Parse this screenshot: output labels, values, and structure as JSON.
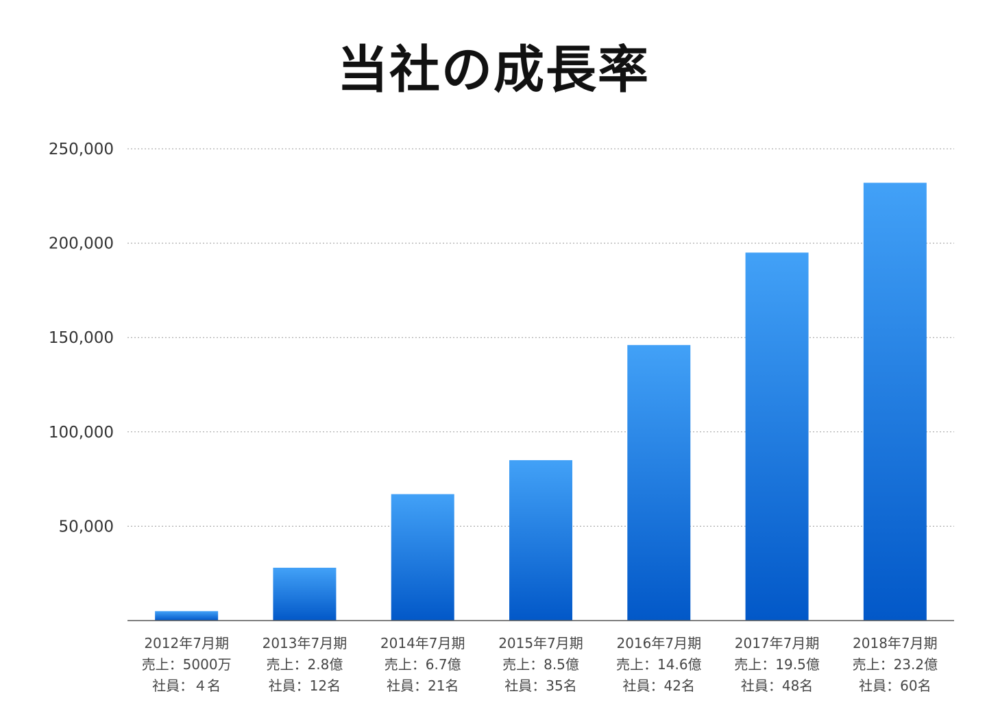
{
  "chart_data": {
    "type": "bar",
    "title": "当社の成長率",
    "xlabel": "",
    "ylabel": "",
    "ylim": [
      0,
      250000
    ],
    "yticks": [
      50000,
      100000,
      150000,
      200000,
      250000
    ],
    "ytick_labels": [
      "50,000",
      "100,000",
      "150,000",
      "200,000",
      "250,000"
    ],
    "grid": true,
    "bar_color_top": "#42a1f7",
    "bar_color_bottom": "#0258c8",
    "categories": [
      [
        "2012年7月期",
        "売上：5000万",
        "社員：４名"
      ],
      [
        "2013年7月期",
        "売上：2.8億",
        "社員：12名"
      ],
      [
        "2014年7月期",
        "売上：6.7億",
        "社員：21名"
      ],
      [
        "2015年7月期",
        "売上：8.5億",
        "社員：35名"
      ],
      [
        "2016年7月期",
        "売上：14.6億",
        "社員：42名"
      ],
      [
        "2017年7月期",
        "売上：19.5億",
        "社員：48名"
      ],
      [
        "2018年7月期",
        "売上：23.2億",
        "社員：60名"
      ]
    ],
    "values": [
      5000,
      28000,
      67000,
      85000,
      146000,
      195000,
      232000
    ]
  }
}
